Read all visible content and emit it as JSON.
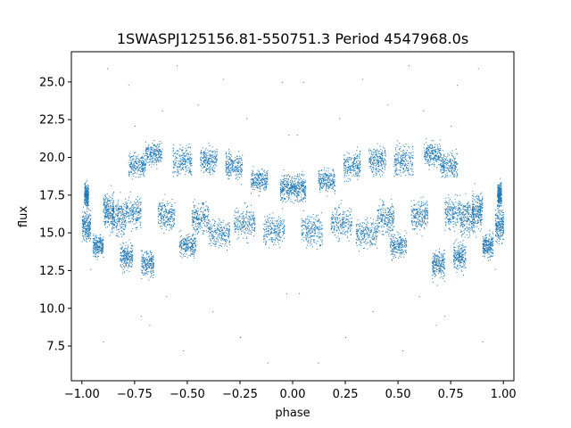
{
  "chart_data": {
    "type": "scatter",
    "title": "1SWASPJ125156.81-550751.3 Period 4547968.0s",
    "xlabel": "phase",
    "ylabel": "flux",
    "xlim": [
      -1.05,
      1.05
    ],
    "ylim": [
      5.2,
      27.0
    ],
    "x_ticks": [
      -1.0,
      -0.75,
      -0.5,
      -0.25,
      0.0,
      0.25,
      0.5,
      0.75,
      1.0
    ],
    "x_tick_labels": [
      "−1.00",
      "−0.75",
      "−0.50",
      "−0.25",
      "0.00",
      "0.25",
      "0.50",
      "0.75",
      "1.00"
    ],
    "y_ticks": [
      7.5,
      10.0,
      12.5,
      15.0,
      17.5,
      20.0,
      22.5,
      25.0
    ],
    "y_tick_labels": [
      "7.5",
      "10.0",
      "12.5",
      "15.0",
      "17.5",
      "20.0",
      "22.5",
      "25.0"
    ],
    "grid": false,
    "legend": "none",
    "marker_color": "#1f77b4",
    "series": [
      {
        "phase_range": [
          -1.0,
          1.0
        ],
        "symmetric_about_zero": true,
        "clusters": [
          {
            "x": [
              -1.0,
              -0.96
            ],
            "y_center": 15.5,
            "spread": 0.8
          },
          {
            "x": [
              -0.99,
              -0.97
            ],
            "y_center": 17.5,
            "spread": 0.6
          },
          {
            "x": [
              -0.95,
              -0.9
            ],
            "y_center": 14.2,
            "spread": 0.6
          },
          {
            "x": [
              -0.9,
              -0.85
            ],
            "y_center": 16.5,
            "spread": 0.9
          },
          {
            "x": [
              -0.86,
              -0.8
            ],
            "y_center": 16.0,
            "spread": 1.0
          },
          {
            "x": [
              -0.82,
              -0.76
            ],
            "y_center": 13.5,
            "spread": 0.7
          },
          {
            "x": [
              -0.8,
              -0.72
            ],
            "y_center": 16.3,
            "spread": 0.8
          },
          {
            "x": [
              -0.78,
              -0.7
            ],
            "y_center": 19.5,
            "spread": 0.6
          },
          {
            "x": [
              -0.72,
              -0.66
            ],
            "y_center": 13.0,
            "spread": 0.7
          },
          {
            "x": [
              -0.7,
              -0.62
            ],
            "y_center": 20.2,
            "spread": 0.6
          },
          {
            "x": [
              -0.64,
              -0.56
            ],
            "y_center": 16.2,
            "spread": 0.8
          },
          {
            "x": [
              -0.57,
              -0.48
            ],
            "y_center": 19.8,
            "spread": 0.8
          },
          {
            "x": [
              -0.54,
              -0.46
            ],
            "y_center": 14.2,
            "spread": 0.6
          },
          {
            "x": [
              -0.48,
              -0.4
            ],
            "y_center": 16.0,
            "spread": 0.8
          },
          {
            "x": [
              -0.44,
              -0.36
            ],
            "y_center": 19.8,
            "spread": 0.7
          },
          {
            "x": [
              -0.4,
              -0.3
            ],
            "y_center": 15.0,
            "spread": 0.7
          },
          {
            "x": [
              -0.32,
              -0.24
            ],
            "y_center": 19.5,
            "spread": 0.7
          },
          {
            "x": [
              -0.28,
              -0.18
            ],
            "y_center": 15.7,
            "spread": 0.8
          },
          {
            "x": [
              -0.2,
              -0.12
            ],
            "y_center": 18.5,
            "spread": 0.6
          },
          {
            "x": [
              -0.14,
              -0.04
            ],
            "y_center": 15.2,
            "spread": 0.8
          },
          {
            "x": [
              -0.06,
              0.0
            ],
            "y_center": 18.0,
            "spread": 0.7
          }
        ],
        "outliers": [
          [
            -0.88,
            25.9
          ],
          [
            -0.78,
            24.8
          ],
          [
            -0.75,
            22.1
          ],
          [
            -0.62,
            23.1
          ],
          [
            -0.55,
            26.1
          ],
          [
            -0.45,
            23.5
          ],
          [
            -0.33,
            25.2
          ],
          [
            -0.22,
            22.6
          ],
          [
            -0.05,
            25.0
          ],
          [
            -0.02,
            21.5
          ],
          [
            -0.9,
            7.8
          ],
          [
            -0.72,
            9.5
          ],
          [
            -0.6,
            10.8
          ],
          [
            -0.52,
            7.2
          ],
          [
            -0.38,
            9.8
          ],
          [
            -0.25,
            8.1
          ],
          [
            -0.12,
            6.4
          ],
          [
            -0.03,
            11.0
          ],
          [
            -0.96,
            12.6
          ],
          [
            -0.68,
            8.9
          ]
        ]
      }
    ]
  }
}
